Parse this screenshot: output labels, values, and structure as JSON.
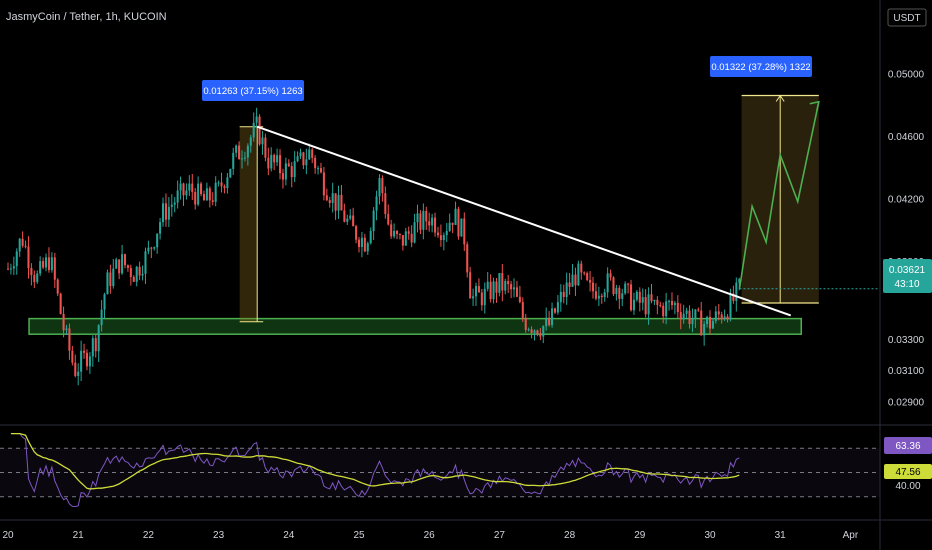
{
  "header": {
    "symbol_title": "JasmyCoin / Tether, 1h, KUCOIN",
    "currency_button": "USDT"
  },
  "colors": {
    "background": "#000000",
    "candle_up": "#26a69a",
    "candle_down": "#ef5350",
    "support_zone": "#1b5e20",
    "support_border": "#4caf50",
    "trendline": "#ffffff",
    "projection": "#4caf50",
    "measure_label": "#2962ff",
    "rsi_line": "#7e57c2",
    "rsi_ma": "#cddc39",
    "price_badge": "#26a69a"
  },
  "annotations": {
    "left_measure": "0.01263 (37.15%) 1263",
    "right_measure": "0.01322 (37.28%) 1322"
  },
  "badges": {
    "last_price": "0.03621",
    "countdown": "43:10",
    "rsi_value": "63.36",
    "rsi_ma_value": "47.56",
    "rsi_level": "40.00"
  },
  "chart_data": {
    "type": "candlestick",
    "x_tick_labels": [
      "20",
      "21",
      "22",
      "23",
      "24",
      "25",
      "26",
      "27",
      "28",
      "29",
      "30",
      "31",
      "Apr"
    ],
    "y_tick_labels": [
      "0.05000",
      "0.04600",
      "0.04200",
      "0.03800",
      "0.03300",
      "0.03100",
      "0.02900"
    ],
    "ylim": [
      0.0278,
      0.0528
    ],
    "price_path": [
      [
        20.0,
        0.0375
      ],
      [
        20.2,
        0.0395
      ],
      [
        20.4,
        0.0368
      ],
      [
        20.6,
        0.0382
      ],
      [
        20.8,
        0.0335
      ],
      [
        20.95,
        0.031
      ],
      [
        21.1,
        0.0318
      ],
      [
        21.25,
        0.033
      ],
      [
        21.4,
        0.0365
      ],
      [
        21.6,
        0.038
      ],
      [
        21.8,
        0.0372
      ],
      [
        22.0,
        0.0385
      ],
      [
        22.2,
        0.041
      ],
      [
        22.4,
        0.042
      ],
      [
        22.6,
        0.0426
      ],
      [
        22.8,
        0.0418
      ],
      [
        23.0,
        0.0425
      ],
      [
        23.2,
        0.0445
      ],
      [
        23.4,
        0.0455
      ],
      [
        23.55,
        0.0466
      ],
      [
        23.7,
        0.0445
      ],
      [
        23.9,
        0.0438
      ],
      [
        24.1,
        0.044
      ],
      [
        24.3,
        0.045
      ],
      [
        24.5,
        0.043
      ],
      [
        24.7,
        0.0415
      ],
      [
        24.9,
        0.04
      ],
      [
        25.1,
        0.0392
      ],
      [
        25.3,
        0.0432
      ],
      [
        25.45,
        0.0396
      ],
      [
        25.6,
        0.0392
      ],
      [
        25.8,
        0.0402
      ],
      [
        26.0,
        0.0408
      ],
      [
        26.2,
        0.04
      ],
      [
        26.35,
        0.041
      ],
      [
        26.5,
        0.0395
      ],
      [
        26.6,
        0.0356
      ],
      [
        26.8,
        0.0358
      ],
      [
        27.0,
        0.0365
      ],
      [
        27.2,
        0.036
      ],
      [
        27.35,
        0.0342
      ],
      [
        27.5,
        0.0338
      ],
      [
        27.7,
        0.0338
      ],
      [
        27.9,
        0.0358
      ],
      [
        28.1,
        0.0372
      ],
      [
        28.3,
        0.036
      ],
      [
        28.5,
        0.0366
      ],
      [
        28.7,
        0.0364
      ],
      [
        28.9,
        0.0354
      ],
      [
        29.1,
        0.0352
      ],
      [
        29.3,
        0.035
      ],
      [
        29.5,
        0.0352
      ],
      [
        29.7,
        0.0345
      ],
      [
        29.85,
        0.034
      ],
      [
        30.0,
        0.034
      ],
      [
        30.15,
        0.0346
      ],
      [
        30.3,
        0.0352
      ],
      [
        30.42,
        0.0362
      ]
    ],
    "support_zone": {
      "x": [
        20.3,
        31.3
      ],
      "y": [
        0.0333,
        0.0343
      ]
    },
    "trendline": {
      "from": [
        23.55,
        0.0466
      ],
      "to": [
        31.15,
        0.0345
      ]
    },
    "left_measure": {
      "x": [
        23.3,
        23.55
      ],
      "y": [
        0.0341,
        0.0466
      ]
    },
    "right_measure": {
      "x": [
        30.45,
        31.55
      ],
      "y": [
        0.0353,
        0.0486
      ]
    },
    "projection_path": [
      [
        30.42,
        0.0362
      ],
      [
        30.6,
        0.0415
      ],
      [
        30.8,
        0.0392
      ],
      [
        31.0,
        0.0448
      ],
      [
        31.25,
        0.0418
      ],
      [
        31.55,
        0.0482
      ]
    ],
    "rsi": {
      "ylim": [
        15,
        85
      ],
      "levels": [
        70,
        50,
        30
      ],
      "rsi_last": 63.36,
      "ma_last": 47.56
    }
  }
}
